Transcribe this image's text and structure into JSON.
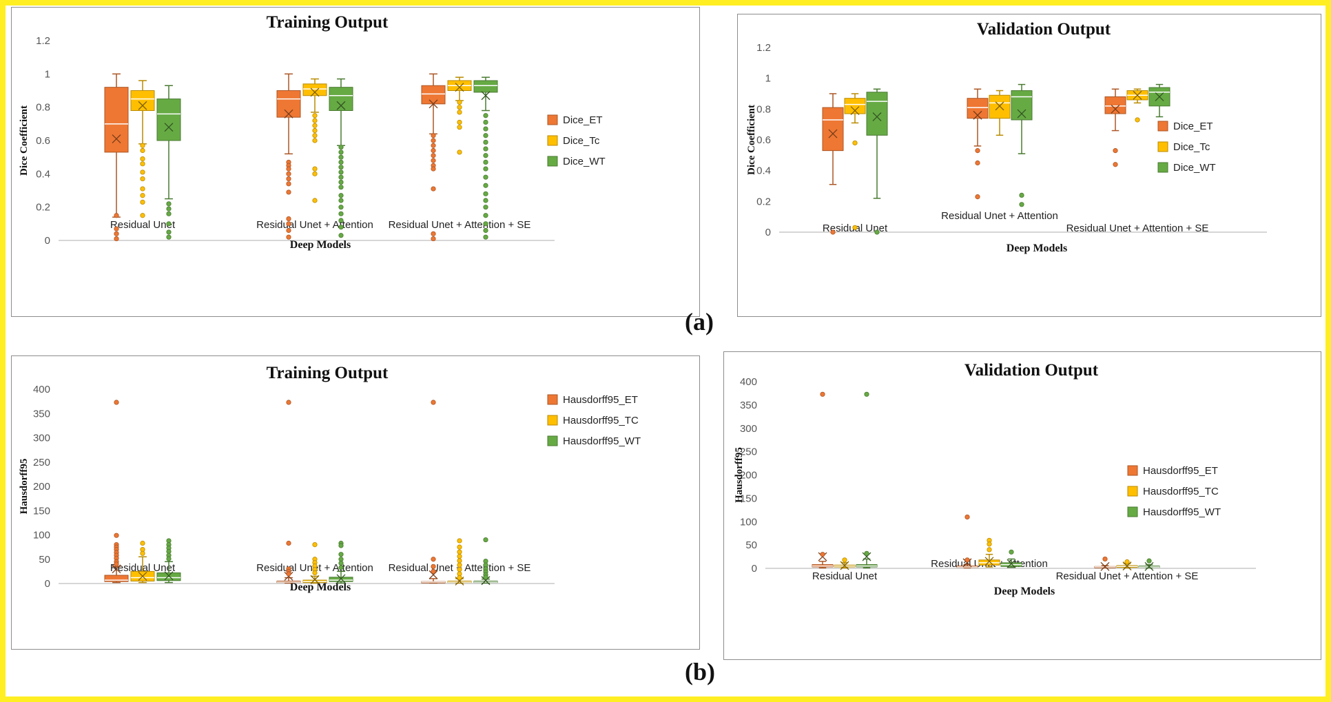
{
  "figure_labels": {
    "a": "(a)",
    "b": "(b)"
  },
  "colors": {
    "et": "#ee7733",
    "tc": "#ffbf00",
    "wt": "#66aa44"
  },
  "chart_data": [
    {
      "id": "dice-training",
      "type": "box",
      "title": "Training Output",
      "xlabel": "Deep Models",
      "ylabel": "Dice Coefficient",
      "ylim": [
        0,
        1.2
      ],
      "yticks": [
        "0",
        "0.2",
        "0.4",
        "0.6",
        "0.8",
        "1",
        "1.2"
      ],
      "categories": [
        "Residual Unet",
        "Residual Unet + Attention",
        "Residual Unet + Attention + SE"
      ],
      "legend": [
        "Dice_ET",
        "Dice_Tc",
        "Dice_WT"
      ],
      "series": [
        {
          "name": "Dice_ET",
          "color": "et",
          "boxes": [
            {
              "min": 0.14,
              "q1": 0.53,
              "median": 0.7,
              "q3": 0.92,
              "max": 1.0,
              "mean": 0.61,
              "outliers": [
                0.15,
                0.07,
                0.04,
                0.01
              ]
            },
            {
              "min": 0.52,
              "q1": 0.74,
              "median": 0.85,
              "q3": 0.9,
              "max": 1.0,
              "mean": 0.76,
              "outliers": [
                0.47,
                0.45,
                0.43,
                0.4,
                0.37,
                0.34,
                0.29,
                0.13,
                0.1,
                0.06,
                0.02
              ]
            },
            {
              "min": 0.64,
              "q1": 0.82,
              "median": 0.88,
              "q3": 0.93,
              "max": 1.0,
              "mean": 0.82,
              "outliers": [
                0.63,
                0.6,
                0.57,
                0.54,
                0.51,
                0.48,
                0.45,
                0.43,
                0.31,
                0.04,
                0.01
              ]
            }
          ]
        },
        {
          "name": "Dice_Tc",
          "color": "tc",
          "boxes": [
            {
              "min": 0.58,
              "q1": 0.78,
              "median": 0.85,
              "q3": 0.9,
              "max": 0.96,
              "mean": 0.81,
              "outliers": [
                0.57,
                0.54,
                0.49,
                0.46,
                0.41,
                0.37,
                0.31,
                0.27,
                0.23,
                0.15
              ]
            },
            {
              "min": 0.77,
              "q1": 0.87,
              "median": 0.91,
              "q3": 0.94,
              "max": 0.97,
              "mean": 0.89,
              "outliers": [
                0.75,
                0.72,
                0.69,
                0.66,
                0.63,
                0.6,
                0.43,
                0.4,
                0.24
              ]
            },
            {
              "min": 0.84,
              "q1": 0.9,
              "median": 0.93,
              "q3": 0.96,
              "max": 0.98,
              "mean": 0.92,
              "outliers": [
                0.83,
                0.8,
                0.77,
                0.71,
                0.68,
                0.53
              ]
            }
          ]
        },
        {
          "name": "Dice_WT",
          "color": "wt",
          "boxes": [
            {
              "min": 0.25,
              "q1": 0.6,
              "median": 0.76,
              "q3": 0.85,
              "max": 0.93,
              "mean": 0.68,
              "outliers": [
                0.22,
                0.19,
                0.16,
                0.1,
                0.05,
                0.02
              ]
            },
            {
              "min": 0.57,
              "q1": 0.78,
              "median": 0.87,
              "q3": 0.92,
              "max": 0.97,
              "mean": 0.81,
              "outliers": [
                0.56,
                0.53,
                0.5,
                0.47,
                0.44,
                0.41,
                0.38,
                0.35,
                0.32,
                0.27,
                0.24,
                0.2,
                0.16,
                0.12,
                0.08,
                0.03
              ]
            },
            {
              "min": 0.78,
              "q1": 0.89,
              "median": 0.93,
              "q3": 0.96,
              "max": 0.98,
              "mean": 0.87,
              "outliers": [
                0.75,
                0.71,
                0.67,
                0.63,
                0.59,
                0.55,
                0.51,
                0.47,
                0.43,
                0.38,
                0.33,
                0.28,
                0.24,
                0.2,
                0.15,
                0.1,
                0.06,
                0.02
              ]
            }
          ]
        }
      ]
    },
    {
      "id": "dice-validation",
      "type": "box",
      "title": "Validation Output",
      "xlabel": "Deep Models",
      "ylabel": "Dice Coefficient",
      "ylim": [
        0,
        1.2
      ],
      "yticks": [
        "0",
        "0.2",
        "0.4",
        "0.6",
        "0.8",
        "1",
        "1.2"
      ],
      "categories": [
        "Residual Unet",
        "Residual Unet + Attention",
        "Residual Unet + Attention + SE"
      ],
      "legend": [
        "Dice_ET",
        "Dice_Tc",
        "Dice_WT"
      ],
      "series": [
        {
          "name": "Dice_ET",
          "color": "et",
          "boxes": [
            {
              "min": 0.31,
              "q1": 0.53,
              "median": 0.73,
              "q3": 0.81,
              "max": 0.9,
              "mean": 0.64,
              "outliers": [
                0.0
              ]
            },
            {
              "min": 0.56,
              "q1": 0.74,
              "median": 0.81,
              "q3": 0.87,
              "max": 0.93,
              "mean": 0.76,
              "outliers": [
                0.53,
                0.45,
                0.23
              ]
            },
            {
              "min": 0.66,
              "q1": 0.77,
              "median": 0.82,
              "q3": 0.88,
              "max": 0.93,
              "mean": 0.8,
              "outliers": [
                0.53,
                0.44
              ]
            }
          ]
        },
        {
          "name": "Dice_Tc",
          "color": "tc",
          "boxes": [
            {
              "min": 0.71,
              "q1": 0.77,
              "median": 0.83,
              "q3": 0.87,
              "max": 0.9,
              "mean": 0.79,
              "outliers": [
                0.58,
                0.03
              ]
            },
            {
              "min": 0.63,
              "q1": 0.74,
              "median": 0.84,
              "q3": 0.89,
              "max": 0.92,
              "mean": 0.82,
              "outliers": []
            },
            {
              "min": 0.84,
              "q1": 0.86,
              "median": 0.89,
              "q3": 0.92,
              "max": 0.93,
              "mean": 0.89,
              "outliers": [
                0.73
              ]
            }
          ]
        },
        {
          "name": "Dice_WT",
          "color": "wt",
          "boxes": [
            {
              "min": 0.22,
              "q1": 0.63,
              "median": 0.85,
              "q3": 0.91,
              "max": 0.93,
              "mean": 0.75,
              "outliers": [
                0.0
              ]
            },
            {
              "min": 0.51,
              "q1": 0.73,
              "median": 0.88,
              "q3": 0.92,
              "max": 0.96,
              "mean": 0.77,
              "outliers": [
                0.24,
                0.18
              ]
            },
            {
              "min": 0.75,
              "q1": 0.82,
              "median": 0.91,
              "q3": 0.94,
              "max": 0.96,
              "mean": 0.88,
              "outliers": []
            }
          ]
        }
      ]
    },
    {
      "id": "hausdorff-training",
      "type": "box",
      "title": "Training Output",
      "xlabel": "Deep Models",
      "ylabel": "Hausdorff95",
      "ylim": [
        0,
        400
      ],
      "yticks": [
        "0",
        "50",
        "100",
        "150",
        "200",
        "250",
        "300",
        "350",
        "400"
      ],
      "categories": [
        "Residual Unet",
        "Residual Unet + Attention",
        "Residual Unet + Attention + SE"
      ],
      "legend": [
        "Hausdorff95_ET",
        "Hausdorff95_TC",
        "Hausdorff95_WT"
      ],
      "series": [
        {
          "name": "Hausdorff95_ET",
          "color": "et",
          "boxes": [
            {
              "min": 2,
              "q1": 4,
              "median": 7,
              "q3": 17,
              "max": 35,
              "mean": 30,
              "outliers": [
                373,
                99,
                80,
                75,
                70,
                64,
                58,
                52,
                45,
                40
              ]
            },
            {
              "min": 1,
              "q1": 2,
              "median": 3,
              "q3": 5,
              "max": 12,
              "mean": 15,
              "outliers": [
                373,
                83,
                30,
                25,
                20
              ]
            },
            {
              "min": 1,
              "q1": 2,
              "median": 3,
              "q3": 4,
              "max": 10,
              "mean": 18,
              "outliers": [
                373,
                50,
                35,
                25
              ]
            }
          ]
        },
        {
          "name": "Hausdorff95_TC",
          "color": "tc",
          "boxes": [
            {
              "min": 2,
              "q1": 5,
              "median": 12,
              "q3": 25,
              "max": 55,
              "mean": 15,
              "outliers": [
                83,
                70,
                62
              ]
            },
            {
              "min": 1,
              "q1": 2,
              "median": 4,
              "q3": 7,
              "max": 15,
              "mean": 8,
              "outliers": [
                80,
                50,
                43,
                36,
                29,
                22
              ]
            },
            {
              "min": 1,
              "q1": 2,
              "median": 3,
              "q3": 5,
              "max": 10,
              "mean": 5,
              "outliers": [
                88,
                75,
                65,
                56,
                47,
                38,
                29,
                20,
                12
              ]
            }
          ]
        },
        {
          "name": "Hausdorff95_WT",
          "color": "wt",
          "boxes": [
            {
              "min": 2,
              "q1": 6,
              "median": 12,
              "q3": 22,
              "max": 45,
              "mean": 16,
              "outliers": [
                88,
                80,
                73,
                66,
                58,
                51
              ]
            },
            {
              "min": 1,
              "q1": 4,
              "median": 7,
              "q3": 13,
              "max": 25,
              "mean": 10,
              "outliers": [
                83,
                78,
                60,
                50,
                42,
                33
              ]
            },
            {
              "min": 1,
              "q1": 2,
              "median": 3,
              "q3": 5,
              "max": 9,
              "mean": 6,
              "outliers": [
                90,
                46,
                38,
                30,
                24,
                18,
                13
              ]
            }
          ]
        }
      ]
    },
    {
      "id": "hausdorff-validation",
      "type": "box",
      "title": "Validation Output",
      "xlabel": "Deep Models",
      "ylabel": "Hausdorff95",
      "ylim": [
        0,
        400
      ],
      "yticks": [
        "0",
        "50",
        "100",
        "150",
        "200",
        "250",
        "300",
        "350",
        "400"
      ],
      "categories": [
        "Residual Unet",
        "Residual Unet + Attention",
        "Residual Unet + Attention + SE"
      ],
      "legend": [
        "Hausdorff95_ET",
        "Hausdorff95_TC",
        "Hausdorff95_WT"
      ],
      "series": [
        {
          "name": "Hausdorff95_ET",
          "color": "et",
          "boxes": [
            {
              "min": 1,
              "q1": 3,
              "median": 5,
              "q3": 8,
              "max": 15,
              "mean": 25,
              "outliers": [
                373,
                30
              ]
            },
            {
              "min": 1,
              "q1": 2,
              "median": 3,
              "q3": 5,
              "max": 8,
              "mean": 12,
              "outliers": [
                110,
                18
              ]
            },
            {
              "min": 1,
              "q1": 2,
              "median": 3,
              "q3": 4,
              "max": 6,
              "mean": 4,
              "outliers": [
                20
              ]
            }
          ]
        },
        {
          "name": "Hausdorff95_TC",
          "color": "tc",
          "boxes": [
            {
              "min": 1,
              "q1": 3,
              "median": 5,
              "q3": 7,
              "max": 12,
              "mean": 6,
              "outliers": [
                18
              ]
            },
            {
              "min": 3,
              "q1": 7,
              "median": 12,
              "q3": 18,
              "max": 30,
              "mean": 15,
              "outliers": [
                60,
                52,
                40
              ]
            },
            {
              "min": 1,
              "q1": 2,
              "median": 4,
              "q3": 6,
              "max": 10,
              "mean": 5,
              "outliers": [
                14
              ]
            }
          ]
        },
        {
          "name": "Hausdorff95_WT",
          "color": "wt",
          "boxes": [
            {
              "min": 1,
              "q1": 3,
              "median": 5,
              "q3": 8,
              "max": 20,
              "mean": 25,
              "outliers": [
                373,
                32
              ]
            },
            {
              "min": 2,
              "q1": 4,
              "median": 8,
              "q3": 12,
              "max": 20,
              "mean": 10,
              "outliers": [
                35
              ]
            },
            {
              "min": 1,
              "q1": 2,
              "median": 3,
              "q3": 5,
              "max": 8,
              "mean": 4,
              "outliers": [
                16
              ]
            }
          ]
        }
      ]
    }
  ]
}
